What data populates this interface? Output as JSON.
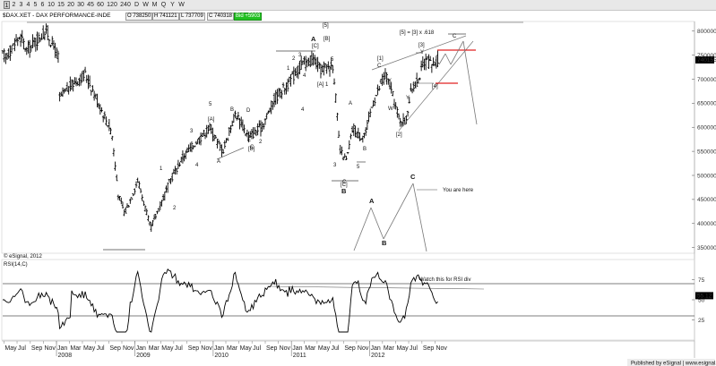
{
  "timeframes": [
    "1",
    "2",
    "3",
    "4",
    "5",
    "6",
    "10",
    "15",
    "20",
    "30",
    "45",
    "60",
    "120",
    "240",
    "D",
    "W",
    "M",
    "Q",
    "Y",
    "W"
  ],
  "quote": {
    "symbol": "$DAX.XET - DAX PERFORMANCE-INDE",
    "open": "O 738250",
    "high": "H 741121",
    "low": "L 737709",
    "close": "C 740318",
    "change": "Bid +5903"
  },
  "colors": {
    "price_bar": "#000000",
    "red_level": "#e02020",
    "change_green": "#22c022",
    "last_price_tag": "#000000"
  },
  "chart_data": [
    {
      "type": "bar",
      "series_type": "ohlc-weekly",
      "title": "",
      "ylim": [
        3400,
        8200
      ],
      "yticks": [
        "800000",
        "750000",
        "700000",
        "650000",
        "600000",
        "550000",
        "500000",
        "450000",
        "400000",
        "350000"
      ],
      "last_price_label": "740155",
      "x_month_labels": [
        "May",
        "Jul",
        "Sep",
        "Nov",
        "Jan",
        "Mar",
        "May",
        "Jul",
        "Sep",
        "Nov",
        "Jan",
        "Mar",
        "May",
        "Jul",
        "Sep",
        "Nov",
        "Jan",
        "Mar",
        "May",
        "Jul",
        "Sep",
        "Nov",
        "Jan",
        "Mar",
        "May",
        "Jul",
        "Sep",
        "Nov",
        "Jan",
        "Mar",
        "May",
        "Jul",
        "Sep",
        "Nov"
      ],
      "x_year_labels": [
        "2008",
        "2009",
        "2010",
        "2011",
        "2012"
      ],
      "x": [
        "2007-05",
        "2007-07",
        "2007-08",
        "2007-11",
        "2008-01",
        "2008-01",
        "2008-03",
        "2008-05",
        "2008-07",
        "2008-09",
        "2008-10",
        "2008-11",
        "2009-01",
        "2009-03",
        "2009-06",
        "2009-08",
        "2009-10",
        "2009-12",
        "2010-02",
        "2010-04",
        "2010-06",
        "2010-08",
        "2010-10",
        "2010-12",
        "2011-02",
        "2011-04",
        "2011-05",
        "2011-07",
        "2011-08",
        "2011-09",
        "2011-10",
        "2011-11",
        "2011-12",
        "2012-01",
        "2012-03",
        "2012-04",
        "2012-05",
        "2012-06",
        "2012-07",
        "2012-08",
        "2012-09",
        "2012-10",
        "2012-11"
      ],
      "y": [
        7500,
        7900,
        7600,
        8000,
        7400,
        6600,
        6900,
        7100,
        6500,
        5900,
        4600,
        4200,
        4900,
        3900,
        4900,
        5400,
        5700,
        6000,
        5500,
        6300,
        5800,
        6000,
        6600,
        6900,
        7300,
        7400,
        7200,
        7300,
        5500,
        5300,
        6000,
        5800,
        5900,
        6500,
        7100,
        6700,
        6200,
        6100,
        6800,
        7000,
        7400,
        7300,
        7400
      ],
      "annotations": [
        "A",
        "[C]",
        "[5]",
        "3",
        "5",
        "[A]",
        "[B]",
        "4",
        "1",
        "C",
        "B",
        "[C]",
        "1",
        "2",
        "3",
        "4",
        "5",
        "[A]",
        "B",
        "D",
        "E",
        "C",
        "A",
        "[B]",
        "2",
        "1",
        "2",
        "4",
        "A",
        "3",
        "5",
        "B",
        "[1]",
        "C",
        "X",
        "W",
        "Y",
        "[2]",
        "[3]",
        "Y",
        "C",
        "[4]",
        "[5] = [3] x .618"
      ],
      "projection_labels": [
        "A",
        "B",
        "C",
        "You are here"
      ],
      "copyright_note": "© eSignal, 2012"
    },
    {
      "type": "line",
      "title": "RSI(14,C)",
      "ylim": [
        0,
        100
      ],
      "yticks": [
        "75",
        "50",
        "25"
      ],
      "levels": [
        70,
        30
      ],
      "last_value_label": "55.12",
      "note": "Watch this for RSI div"
    }
  ],
  "footer": "Published by eSignal | www.esignal.com"
}
